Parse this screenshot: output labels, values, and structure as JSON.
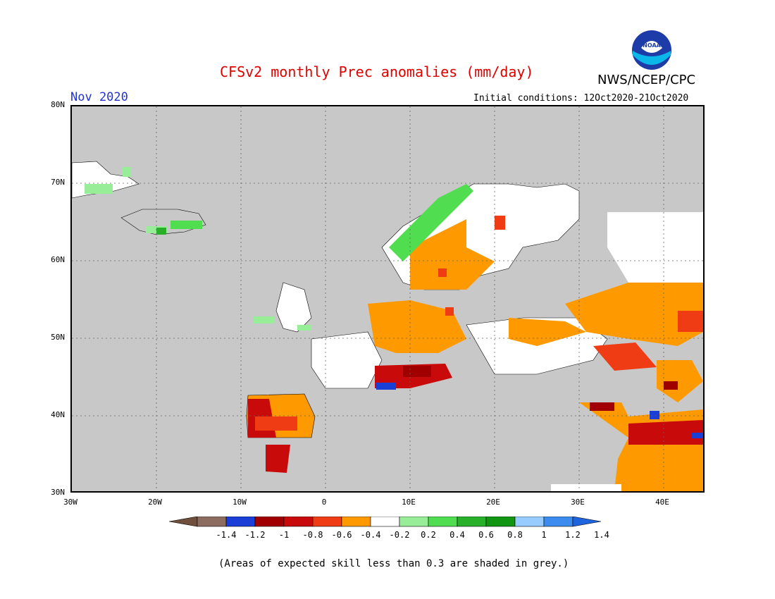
{
  "header": {
    "title": "CFSv2 monthly Prec anomalies (mm/day)",
    "month": "Nov 2020",
    "initial_conditions": "Initial conditions: 12Oct2020-21Oct2020",
    "org": "NWS/NCEP/CPC",
    "logo_text": "NOAA"
  },
  "map": {
    "lon_range": [
      -30,
      45
    ],
    "lat_range": [
      30,
      80
    ],
    "lat_ticks": [
      "30N",
      "40N",
      "50N",
      "60N",
      "70N",
      "80N"
    ],
    "lon_ticks": [
      "30W",
      "20W",
      "10W",
      "0",
      "10E",
      "20E",
      "30E",
      "40E"
    ],
    "grid": "dotted",
    "background": "#c8c8c8"
  },
  "colorbar": {
    "labels": [
      "-1.4",
      "-1.2",
      "-1",
      "-0.8",
      "-0.6",
      "-0.4",
      "-0.2",
      "0.2",
      "0.4",
      "0.6",
      "0.8",
      "1",
      "1.2",
      "1.4"
    ],
    "colors": [
      "#70503c",
      "#8c6d60",
      "#1a3fd6",
      "#a00000",
      "#c80a0a",
      "#f03c14",
      "#ff9900",
      "#ffffff",
      "#98ee98",
      "#50dd50",
      "#28b028",
      "#129612",
      "#96ccff",
      "#3c8cf0",
      "#1e64dc"
    ]
  },
  "footer": {
    "note": "(Areas of expected skill less than 0.3 are shaded in grey.)"
  }
}
